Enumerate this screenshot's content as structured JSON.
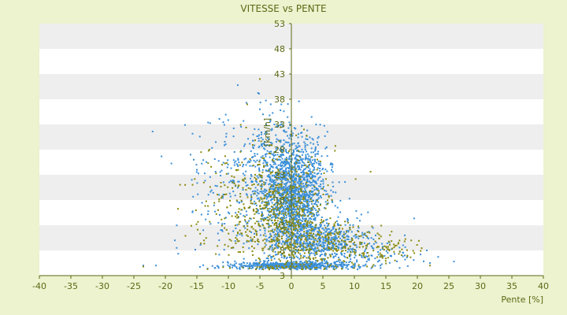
{
  "chart_data": {
    "type": "scatter",
    "title": "VITESSE vs PENTE",
    "xlabel": "Pente [%]",
    "ylabel": "[km/h]",
    "xlim": [
      -40,
      40
    ],
    "ylim": [
      3,
      53
    ],
    "x_ticks": [
      -40,
      -35,
      -30,
      -25,
      -20,
      -15,
      -10,
      -5,
      0,
      5,
      10,
      15,
      20,
      25,
      30,
      35,
      40
    ],
    "y_ticks": [
      3,
      8,
      13,
      18,
      23,
      28,
      33,
      38,
      43,
      48,
      53
    ],
    "grid": "alternating horizontal bands",
    "legend": "none",
    "colors": {
      "background": "#edf2cf",
      "plot_band_light": "#ffffff",
      "plot_band_dark": "#eeeeee",
      "axis": "#5a6a14",
      "text": "#5a6a14",
      "series_blue": "#3a8fd8",
      "series_olive": "#8a8a10"
    },
    "series": [
      {
        "color": "#3a8fd8",
        "clusters": [
          {
            "x_center": 0.5,
            "x_spread": 2.5,
            "y_center": 19,
            "y_spread": 6,
            "count": 1400
          },
          {
            "x_center": -3,
            "x_spread": 4,
            "y_center": 22,
            "y_spread": 6,
            "count": 450
          },
          {
            "x_center": 5,
            "x_spread": 4,
            "y_center": 10,
            "y_spread": 2,
            "count": 500
          },
          {
            "x_center": 0,
            "x_spread": 5,
            "y_center": 5,
            "y_spread": 0.4,
            "count": 550
          },
          {
            "x_center": -10,
            "x_spread": 4,
            "y_center": 20,
            "y_spread": 7,
            "count": 120
          },
          {
            "x_center": 12,
            "x_spread": 5,
            "y_center": 7,
            "y_spread": 1.2,
            "count": 80
          }
        ],
        "points": [
          [
            -23.5,
            5
          ],
          [
            -21.5,
            5
          ],
          [
            -18.5,
            10
          ],
          [
            -18.2,
            8.5
          ],
          [
            -15.8,
            22
          ],
          [
            -15.5,
            26
          ],
          [
            -15,
            24
          ],
          [
            -16,
            27
          ],
          [
            22,
            5.5
          ],
          [
            25.8,
            5.8
          ],
          [
            21.5,
            8
          ],
          [
            18,
            7
          ],
          [
            -5,
            36
          ],
          [
            -4.5,
            35
          ],
          [
            -4,
            33
          ]
        ]
      },
      {
        "color": "#8a8a10",
        "clusters": [
          {
            "x_center": -1,
            "x_spread": 4,
            "y_center": 15,
            "y_spread": 6,
            "count": 550
          },
          {
            "x_center": 5,
            "x_spread": 5,
            "y_center": 9,
            "y_spread": 2.5,
            "count": 250
          },
          {
            "x_center": -8,
            "x_spread": 4,
            "y_center": 17,
            "y_spread": 6,
            "count": 150
          },
          {
            "x_center": 15,
            "x_spread": 3,
            "y_center": 8.5,
            "y_spread": 1.5,
            "count": 60
          }
        ],
        "points": [
          [
            -23.5,
            4.8
          ],
          [
            -5,
            42
          ],
          [
            -7,
            37
          ],
          [
            2,
            32
          ],
          [
            0,
            31
          ],
          [
            -13,
            28
          ],
          [
            -11,
            25
          ],
          [
            22,
            5
          ],
          [
            17,
            9.5
          ],
          [
            -1,
            20
          ],
          [
            -3,
            26
          ]
        ]
      }
    ]
  }
}
